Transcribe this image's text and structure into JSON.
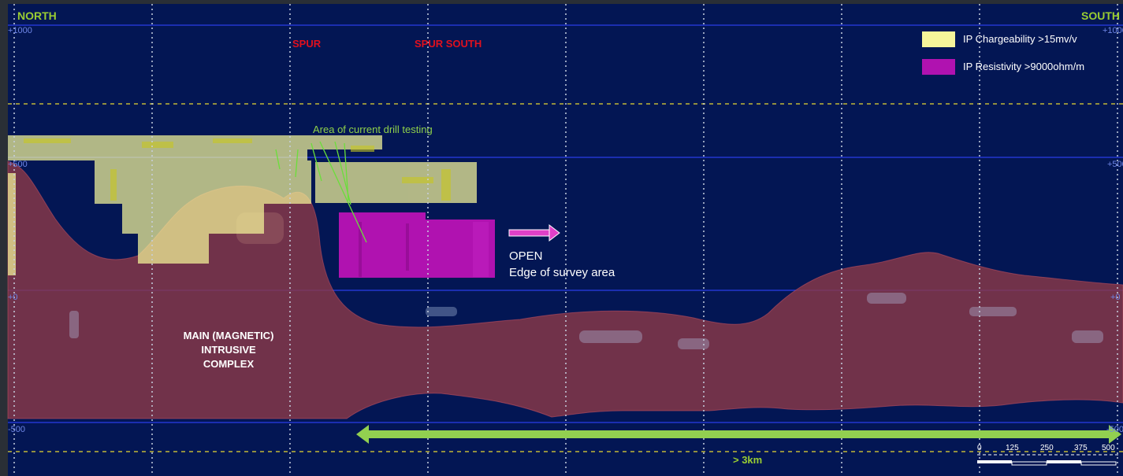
{
  "section": {
    "north_label": "NORTH",
    "south_label": "SOUTH",
    "elevations": {
      "plus1000": "+1000",
      "plus500": "+500",
      "zero": "+0",
      "minus500": "-500"
    },
    "places": {
      "spur": "SPUR",
      "spur_south": "SPUR SOUTH"
    }
  },
  "legend": {
    "chargeability": {
      "label": "IP Chargeability >15mv/v",
      "color": "#f6f59a"
    },
    "resistivity": {
      "label": "IP Resistivity >9000ohm/m",
      "color": "#b012b0"
    }
  },
  "annotations": {
    "drill_area": "Area of current drill testing",
    "open": "OPEN",
    "edge": "Edge of survey area",
    "complex_line1": "MAIN (MAGNETIC)",
    "complex_line2": "INTRUSIVE",
    "complex_line3": "COMPLEX",
    "length": "> 3km"
  },
  "scale_bar": {
    "ticks": [
      "0",
      "125",
      "250",
      "375",
      "500"
    ]
  },
  "colors": {
    "background": "#031654",
    "intrusive": "#8a3848",
    "grid_line": "#2a3ee8",
    "accent_green": "#92d050",
    "arrow_magenta": "#e040c8",
    "label_red": "#e0101e"
  }
}
